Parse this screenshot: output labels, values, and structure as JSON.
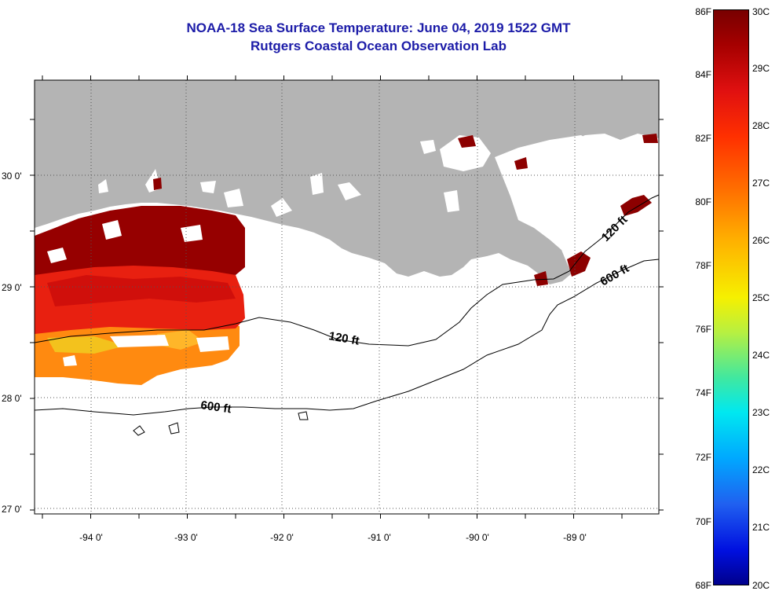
{
  "header": {
    "title_line1": "NOAA-18 Sea Surface Temperature:  June 04, 2019 1522 GMT",
    "title_line2": "Rutgers Coastal Ocean Observation Lab"
  },
  "map": {
    "latitude_labels": [
      "30 0'",
      "29 0'",
      "28 0'",
      "27 0'"
    ],
    "longitude_labels": [
      "-94 0'",
      "-93 0'",
      "-92 0'",
      "-91 0'",
      "-90 0'",
      "-89 0'"
    ],
    "contour_labels": [
      "120 ft",
      "600 ft",
      "120 ft",
      "600 ft"
    ],
    "colors": {
      "land": "#b4b4b4",
      "water": "#ffffff",
      "warm": "#8c0000",
      "hot": "#e02000",
      "mid": "#ff8000"
    }
  },
  "colorbar": {
    "fahrenheit_labels": [
      "86F",
      "84F",
      "82F",
      "80F",
      "78F",
      "76F",
      "74F",
      "72F",
      "70F",
      "68F"
    ],
    "celsius_labels": [
      "30C",
      "29C",
      "28C",
      "27C",
      "26C",
      "25C",
      "24C",
      "23C",
      "22C",
      "21C",
      "20C"
    ]
  }
}
